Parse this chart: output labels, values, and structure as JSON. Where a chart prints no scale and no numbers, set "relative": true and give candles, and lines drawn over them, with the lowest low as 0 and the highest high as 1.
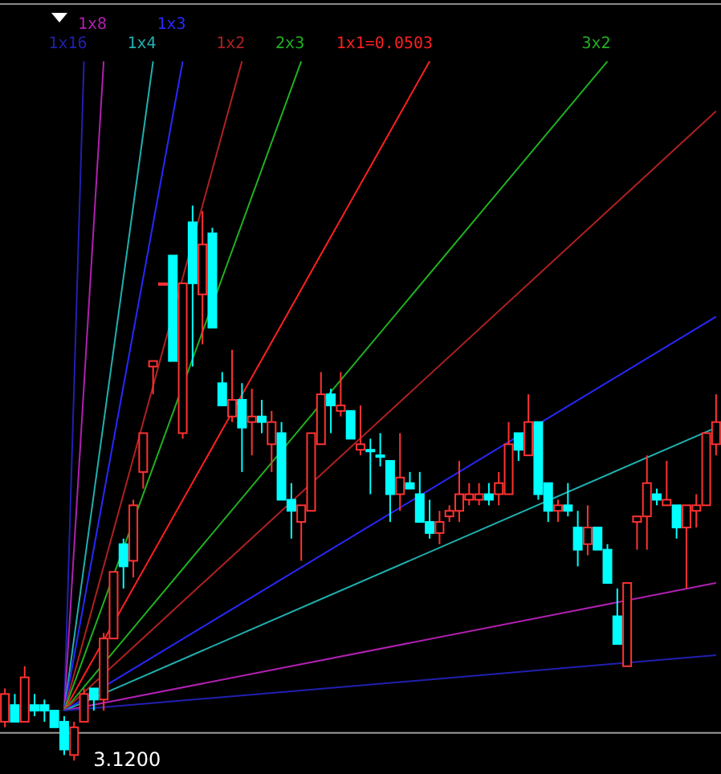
{
  "chart_data": {
    "type": "candlestick",
    "relative": true,
    "marker": "none",
    "line_style": "solid",
    "categories": [
      null,
      null,
      null,
      null,
      null,
      null,
      null,
      null,
      null,
      null,
      null,
      null,
      null,
      null,
      null,
      null,
      null,
      null,
      null,
      null,
      null,
      null,
      null,
      null,
      null,
      null,
      null,
      null,
      null,
      null,
      null,
      null,
      null,
      null,
      null,
      null,
      null,
      null,
      null,
      null,
      null,
      null,
      null,
      null,
      null,
      null,
      null,
      null,
      null,
      null,
      null,
      null,
      null,
      null,
      null,
      null,
      null,
      null,
      null,
      null,
      null,
      null,
      null,
      null,
      null,
      null,
      null,
      null,
      null,
      null,
      null,
      null,
      null
    ],
    "ohlc": [
      [
        0.07,
        0.13,
        0.06,
        0.12
      ],
      [
        0.1,
        0.12,
        0.07,
        0.07
      ],
      [
        0.07,
        0.17,
        0.07,
        0.15
      ],
      [
        0.1,
        0.12,
        0.08,
        0.09
      ],
      [
        0.1,
        0.11,
        0.07,
        0.09
      ],
      [
        0.09,
        0.09,
        0.06,
        0.06
      ],
      [
        0.07,
        0.08,
        0.01,
        0.02
      ],
      [
        0.01,
        0.07,
        0,
        0.06
      ],
      [
        0.07,
        0.13,
        0.07,
        0.12
      ],
      [
        0.13,
        0.13,
        0.09,
        0.11
      ],
      [
        0.11,
        0.23,
        0.09,
        0.22
      ],
      [
        0.22,
        0.34,
        0.22,
        0.34
      ],
      [
        0.39,
        0.4,
        0.31,
        0.35
      ],
      [
        0.36,
        0.47,
        0.33,
        0.46
      ],
      [
        0.52,
        0.59,
        0.49,
        0.59
      ],
      [
        0.71,
        0.72,
        0.66,
        0.72
      ],
      [
        0.86,
        0.86,
        0.86,
        0.86
      ],
      [
        0.91,
        0.91,
        0.72,
        0.72
      ],
      [
        0.59,
        0.86,
        0.58,
        0.86
      ],
      [
        0.97,
        1,
        0.71,
        0.86
      ],
      [
        0.84,
        0.99,
        0.75,
        0.93
      ],
      [
        0.95,
        0.96,
        0.78,
        0.78
      ],
      [
        0.68,
        0.7,
        0.64,
        0.64
      ],
      [
        0.62,
        0.74,
        0.61,
        0.65
      ],
      [
        0.65,
        0.68,
        0.52,
        0.6
      ],
      [
        0.61,
        0.67,
        0.55,
        0.62
      ],
      [
        0.62,
        0.65,
        0.59,
        0.61
      ],
      [
        0.57,
        0.63,
        0.52,
        0.61
      ],
      [
        0.59,
        0.61,
        0.47,
        0.47
      ],
      [
        0.47,
        0.5,
        0.4,
        0.45
      ],
      [
        0.43,
        0.46,
        0.36,
        0.46
      ],
      [
        0.45,
        0.59,
        0.45,
        0.59
      ],
      [
        0.57,
        0.7,
        0.57,
        0.66
      ],
      [
        0.66,
        0.67,
        0.59,
        0.64
      ],
      [
        0.63,
        0.7,
        0.62,
        0.64
      ],
      [
        0.63,
        0.63,
        0.58,
        0.58
      ],
      [
        0.56,
        0.64,
        0.55,
        0.57
      ],
      [
        0.56,
        0.58,
        0.48,
        0.56
      ],
      [
        0.55,
        0.59,
        0.53,
        0.55
      ],
      [
        0.54,
        0.54,
        0.43,
        0.48
      ],
      [
        0.48,
        0.59,
        0.45,
        0.51
      ],
      [
        0.5,
        0.52,
        0.49,
        0.49
      ],
      [
        0.48,
        0.52,
        0.43,
        0.43
      ],
      [
        0.43,
        0.47,
        0.4,
        0.41
      ],
      [
        0.41,
        0.45,
        0.39,
        0.43
      ],
      [
        0.44,
        0.46,
        0.43,
        0.45
      ],
      [
        0.45,
        0.54,
        0.43,
        0.48
      ],
      [
        0.47,
        0.5,
        0.46,
        0.48
      ],
      [
        0.47,
        0.5,
        0.46,
        0.48
      ],
      [
        0.48,
        0.5,
        0.46,
        0.47
      ],
      [
        0.48,
        0.52,
        0.46,
        0.5
      ],
      [
        0.48,
        0.61,
        0.48,
        0.57
      ],
      [
        0.59,
        0.59,
        0.54,
        0.56
      ],
      [
        0.55,
        0.66,
        0.55,
        0.61
      ],
      [
        0.61,
        0.61,
        0.47,
        0.48
      ],
      [
        0.5,
        0.5,
        0.43,
        0.45
      ],
      [
        0.45,
        0.47,
        0.43,
        0.46
      ],
      [
        0.46,
        0.5,
        0.44,
        0.45
      ],
      [
        0.42,
        0.45,
        0.35,
        0.38
      ],
      [
        0.39,
        0.46,
        0.37,
        0.42
      ],
      [
        0.42,
        0.42,
        0.38,
        0.38
      ],
      [
        0.38,
        0.39,
        0.32,
        0.32
      ],
      [
        0.26,
        0.31,
        0.21,
        0.21
      ],
      [
        0.17,
        0.32,
        0.17,
        0.32
      ],
      [
        0.43,
        0.44,
        0.38,
        0.44
      ],
      [
        0.44,
        0.55,
        0.38,
        0.5
      ],
      [
        0.48,
        0.49,
        0.46,
        0.47
      ],
      [
        0.46,
        0.54,
        0.46,
        0.47
      ],
      [
        0.46,
        0.46,
        0.4,
        0.42
      ],
      [
        0.42,
        0.46,
        0.31,
        0.46
      ],
      [
        0.45,
        0.48,
        0.42,
        0.46
      ],
      [
        0.46,
        0.59,
        0.46,
        0.59
      ],
      [
        0.57,
        0.66,
        0.55,
        0.61
      ]
    ],
    "colors": [
      "#ff3232",
      "#00ffff",
      "#ff3232",
      "#00ffff",
      "#00ffff",
      "#00ffff",
      "#00ffff",
      "#ff3232",
      "#ff3232",
      "#00ffff",
      "#ff3232",
      "#ff3232",
      "#00ffff",
      "#ff3232",
      "#ff3232",
      "#ff3232",
      "#ff3232",
      "#00ffff",
      "#ff3232",
      "#00ffff",
      "#ff3232",
      "#00ffff",
      "#00ffff",
      "#ff3232",
      "#00ffff",
      "#ff3232",
      "#00ffff",
      "#ff3232",
      "#00ffff",
      "#00ffff",
      "#ff3232",
      "#ff3232",
      "#ff3232",
      "#00ffff",
      "#ff3232",
      "#00ffff",
      "#ff3232",
      "#00ffff",
      "#00ffff",
      "#00ffff",
      "#ff3232",
      "#00ffff",
      "#00ffff",
      "#00ffff",
      "#ff3232",
      "#ff3232",
      "#ff3232",
      "#ff3232",
      "#ff3232",
      "#00ffff",
      "#ff3232",
      "#ff3232",
      "#00ffff",
      "#ff3232",
      "#00ffff",
      "#00ffff",
      "#ff3232",
      "#00ffff",
      "#00ffff",
      "#ff3232",
      "#00ffff",
      "#00ffff",
      "#00ffff",
      "#ff3232",
      "#ff3232",
      "#ff3232",
      "#00ffff",
      "#ff3232",
      "#00ffff",
      "#ff3232",
      "#ff3232",
      "#ff3232",
      "#ff3232"
    ],
    "series": [
      {
        "type": "line",
        "name": "1x16",
        "color": "#2020b0",
        "values": [
          null,
          null,
          null,
          null,
          null,
          null,
          0.09,
          null,
          1.26,
          null,
          null,
          null,
          null,
          null,
          null,
          null,
          null,
          null,
          null,
          null,
          null,
          null,
          null,
          null,
          null,
          null,
          null,
          null,
          null,
          null,
          null,
          null,
          null,
          null,
          null,
          null,
          null,
          null,
          null,
          null,
          null,
          null,
          null,
          null,
          null,
          null,
          null,
          null,
          null,
          null,
          null,
          null,
          null,
          null,
          null,
          null,
          null,
          null,
          null,
          null,
          null,
          null,
          null,
          null,
          null,
          null,
          null,
          null,
          null,
          null,
          null,
          null,
          null
        ]
      },
      {
        "type": "line",
        "name": "1x8",
        "color": "#b020b0",
        "values": [
          null,
          null,
          null,
          null,
          null,
          null,
          0.09,
          null,
          null,
          null,
          1.26,
          null,
          null,
          null,
          null,
          null,
          null,
          null,
          null,
          null,
          null,
          null,
          null,
          null,
          null,
          null,
          null,
          null,
          null,
          null,
          null,
          null,
          null,
          null,
          null,
          null,
          null,
          null,
          null,
          null,
          null,
          null,
          null,
          null,
          null,
          null,
          null,
          null,
          null,
          null,
          null,
          null,
          null,
          null,
          null,
          null,
          null,
          null,
          null,
          null,
          null,
          null,
          null,
          null,
          null,
          null,
          null,
          null,
          null,
          null,
          null,
          null,
          null
        ]
      },
      {
        "type": "line",
        "name": "1x4",
        "color": "#20b0b0",
        "values": [
          null,
          null,
          null,
          null,
          null,
          null,
          0.09,
          null,
          null,
          null,
          null,
          null,
          null,
          null,
          null,
          1.26,
          null,
          null,
          null,
          null,
          null,
          null,
          null,
          null,
          null,
          null,
          null,
          null,
          null,
          null,
          null,
          null,
          null,
          null,
          null,
          null,
          null,
          null,
          null,
          null,
          null,
          null,
          null,
          null,
          null,
          null,
          null,
          null,
          null,
          null,
          null,
          null,
          null,
          null,
          null,
          null,
          null,
          null,
          null,
          null,
          null,
          null,
          null,
          null,
          null,
          null,
          null,
          null,
          null,
          null,
          null,
          null,
          null
        ]
      },
      {
        "type": "line",
        "name": "1x3",
        "color": "#2828ff",
        "values": [
          null,
          null,
          null,
          null,
          null,
          null,
          0.09,
          null,
          null,
          null,
          null,
          null,
          null,
          null,
          null,
          null,
          null,
          null,
          1.26,
          null,
          null,
          null,
          null,
          null,
          null,
          null,
          null,
          null,
          null,
          null,
          null,
          null,
          null,
          null,
          null,
          null,
          null,
          null,
          null,
          null,
          null,
          null,
          null,
          null,
          null,
          null,
          null,
          null,
          null,
          null,
          null,
          null,
          null,
          null,
          null,
          null,
          null,
          null,
          null,
          null,
          null,
          null,
          null,
          null,
          null,
          null,
          null,
          null,
          null,
          null,
          null,
          null,
          null
        ]
      },
      {
        "type": "line",
        "name": "1x2",
        "color": "#b02020",
        "values": [
          null,
          null,
          null,
          null,
          null,
          null,
          0.09,
          null,
          null,
          null,
          null,
          null,
          null,
          null,
          null,
          null,
          null,
          null,
          null,
          null,
          null,
          null,
          null,
          null,
          1.26,
          null,
          null,
          null,
          null,
          null,
          null,
          null,
          null,
          null,
          null,
          null,
          null,
          null,
          null,
          null,
          null,
          null,
          null,
          null,
          null,
          null,
          null,
          null,
          null,
          null,
          null,
          null,
          null,
          null,
          null,
          null,
          null,
          null,
          null,
          null,
          null,
          null,
          null,
          null,
          null,
          null,
          null,
          null,
          null,
          null,
          null,
          null,
          null
        ]
      },
      {
        "type": "line",
        "name": "2x3",
        "color": "#20b020",
        "values": [
          null,
          null,
          null,
          null,
          null,
          null,
          0.09,
          null,
          null,
          null,
          null,
          null,
          null,
          null,
          null,
          null,
          null,
          null,
          null,
          null,
          null,
          null,
          null,
          null,
          null,
          null,
          null,
          null,
          null,
          null,
          1.26,
          null,
          null,
          null,
          null,
          null,
          null,
          null,
          null,
          null,
          null,
          null,
          null,
          null,
          null,
          null,
          null,
          null,
          null,
          null,
          null,
          null,
          null,
          null,
          null,
          null,
          null,
          null,
          null,
          null,
          null,
          null,
          null,
          null,
          null,
          null,
          null,
          null,
          null,
          null,
          null,
          null,
          null
        ]
      },
      {
        "type": "line",
        "name": "1x1=0.0503",
        "color": "#ff2020",
        "values": [
          null,
          null,
          null,
          null,
          null,
          null,
          0.09,
          null,
          null,
          null,
          null,
          null,
          null,
          null,
          null,
          null,
          null,
          null,
          null,
          null,
          null,
          null,
          null,
          null,
          null,
          null,
          null,
          null,
          null,
          null,
          null,
          null,
          null,
          null,
          null,
          null,
          null,
          null,
          null,
          null,
          null,
          null,
          null,
          1.26,
          null,
          null,
          null,
          null,
          null,
          null,
          null,
          null,
          null,
          null,
          null,
          null,
          null,
          null,
          null,
          null,
          null,
          null,
          null,
          null,
          null,
          null,
          null,
          null,
          null,
          null,
          null,
          null,
          null
        ]
      },
      {
        "type": "line",
        "name": "3x2",
        "color": "#20b020",
        "values": [
          null,
          null,
          null,
          null,
          null,
          null,
          0.09,
          null,
          null,
          null,
          null,
          null,
          null,
          null,
          null,
          null,
          null,
          null,
          null,
          null,
          null,
          null,
          null,
          null,
          null,
          null,
          null,
          null,
          null,
          null,
          null,
          null,
          null,
          null,
          null,
          null,
          null,
          null,
          null,
          null,
          null,
          null,
          null,
          null,
          null,
          null,
          null,
          null,
          null,
          null,
          null,
          null,
          null,
          null,
          null,
          null,
          null,
          null,
          null,
          null,
          null,
          1.26,
          null,
          null,
          null,
          null,
          null,
          null,
          null,
          null,
          null,
          null,
          null
        ]
      },
      {
        "type": "line",
        "color": "#b02020",
        "values": [
          null,
          null,
          null,
          null,
          null,
          null,
          0.09,
          null,
          null,
          null,
          null,
          null,
          null,
          null,
          null,
          null,
          null,
          null,
          null,
          null,
          null,
          null,
          null,
          null,
          null,
          null,
          null,
          null,
          null,
          null,
          null,
          null,
          null,
          null,
          null,
          null,
          null,
          null,
          null,
          null,
          null,
          null,
          null,
          null,
          null,
          null,
          null,
          null,
          null,
          null,
          null,
          null,
          null,
          null,
          null,
          null,
          null,
          null,
          null,
          null,
          null,
          null,
          null,
          null,
          null,
          null,
          null,
          null,
          null,
          null,
          null,
          null,
          1.17
        ]
      },
      {
        "type": "line",
        "color": "#2828ff",
        "values": [
          null,
          null,
          null,
          null,
          null,
          null,
          0.09,
          null,
          null,
          null,
          null,
          null,
          null,
          null,
          null,
          null,
          null,
          null,
          null,
          null,
          null,
          null,
          null,
          null,
          null,
          null,
          null,
          null,
          null,
          null,
          null,
          null,
          null,
          null,
          null,
          null,
          null,
          null,
          null,
          null,
          null,
          null,
          null,
          null,
          null,
          null,
          null,
          null,
          null,
          null,
          null,
          null,
          null,
          null,
          null,
          null,
          null,
          null,
          null,
          null,
          null,
          null,
          null,
          null,
          null,
          null,
          null,
          null,
          null,
          null,
          null,
          null,
          0.8
        ]
      },
      {
        "type": "line",
        "color": "#20b0b0",
        "values": [
          null,
          null,
          null,
          null,
          null,
          null,
          0.09,
          null,
          null,
          null,
          null,
          null,
          null,
          null,
          null,
          null,
          null,
          null,
          null,
          null,
          null,
          null,
          null,
          null,
          null,
          null,
          null,
          null,
          null,
          null,
          null,
          null,
          null,
          null,
          null,
          null,
          null,
          null,
          null,
          null,
          null,
          null,
          null,
          null,
          null,
          null,
          null,
          null,
          null,
          null,
          null,
          null,
          null,
          null,
          null,
          null,
          null,
          null,
          null,
          null,
          null,
          null,
          null,
          null,
          null,
          null,
          null,
          null,
          null,
          null,
          null,
          null,
          0.6
        ]
      },
      {
        "type": "line",
        "color": "#b020b0",
        "values": [
          null,
          null,
          null,
          null,
          null,
          null,
          0.09,
          null,
          null,
          null,
          null,
          null,
          null,
          null,
          null,
          null,
          null,
          null,
          null,
          null,
          null,
          null,
          null,
          null,
          null,
          null,
          null,
          null,
          null,
          null,
          null,
          null,
          null,
          null,
          null,
          null,
          null,
          null,
          null,
          null,
          null,
          null,
          null,
          null,
          null,
          null,
          null,
          null,
          null,
          null,
          null,
          null,
          null,
          null,
          null,
          null,
          null,
          null,
          null,
          null,
          null,
          null,
          null,
          null,
          null,
          null,
          null,
          null,
          null,
          null,
          null,
          null,
          0.32
        ]
      },
      {
        "type": "line",
        "color": "#2020b0",
        "values": [
          null,
          null,
          null,
          null,
          null,
          null,
          0.09,
          null,
          null,
          null,
          null,
          null,
          null,
          null,
          null,
          null,
          null,
          null,
          null,
          null,
          null,
          null,
          null,
          null,
          null,
          null,
          null,
          null,
          null,
          null,
          null,
          null,
          null,
          null,
          null,
          null,
          null,
          null,
          null,
          null,
          null,
          null,
          null,
          null,
          null,
          null,
          null,
          null,
          null,
          null,
          null,
          null,
          null,
          null,
          null,
          null,
          null,
          null,
          null,
          null,
          null,
          null,
          null,
          null,
          null,
          null,
          null,
          null,
          null,
          null,
          null,
          null,
          0.19
        ]
      }
    ],
    "ref_lines": [
      {
        "axis": "y",
        "value": 0.05,
        "color": "#9a9a9a"
      }
    ],
    "annotations": [
      "3.1200"
    ]
  }
}
